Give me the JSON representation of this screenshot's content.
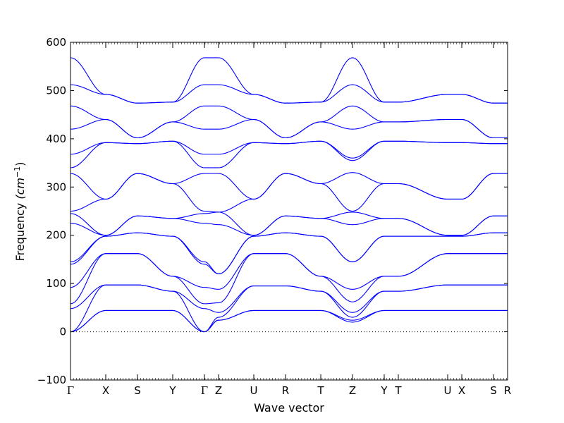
{
  "chart_data": {
    "type": "line",
    "xlabel": "Wave vector",
    "ylabel": "Frequency ",
    "ylabel_unit": "(cm",
    "ylabel_exp": "−1",
    "ylabel_close": ")",
    "ylim": [
      -100,
      600
    ],
    "yticks": [
      "600",
      "500",
      "400",
      "300",
      "200",
      "100",
      "0",
      "−100"
    ],
    "ytick_values": [
      600,
      500,
      400,
      300,
      200,
      100,
      0,
      -100
    ],
    "xlim": [
      0,
      12.4
    ],
    "kpoints": [
      {
        "label": "Γ",
        "x": 0
      },
      {
        "label": "X",
        "x": 1
      },
      {
        "label": "S",
        "x": 1.9
      },
      {
        "label": "Y",
        "x": 2.9
      },
      {
        "label": "Γ",
        "x": 3.8
      },
      {
        "label": "Z",
        "x": 4.2
      },
      {
        "label": "U",
        "x": 5.2
      },
      {
        "label": "R",
        "x": 6.1
      },
      {
        "label": "T",
        "x": 7.1
      },
      {
        "label": "Z",
        "x": 8.0
      },
      {
        "label": "Y",
        "x": 8.9
      },
      {
        "label": "T",
        "x": 9.3
      },
      {
        "label": "U",
        "x": 10.7
      },
      {
        "label": "X",
        "x": 11.1
      },
      {
        "label": "S",
        "x": 12.0
      },
      {
        "label": "R",
        "x": 12.4
      }
    ],
    "zero_line": 0,
    "color": "#0000ff",
    "grid": false,
    "legend": "none",
    "node_values": [
      [
        0,
        44,
        44,
        44,
        0,
        24,
        44,
        44,
        44,
        20,
        44,
        44,
        44,
        44,
        44,
        44
      ],
      [
        0,
        44,
        44,
        44,
        0,
        24,
        44,
        44,
        44,
        24,
        44,
        44,
        44,
        44,
        44,
        44
      ],
      [
        0,
        97,
        97,
        84,
        0,
        30,
        95,
        95,
        84,
        30,
        84,
        84,
        97,
        97,
        97,
        97
      ],
      [
        48,
        97,
        97,
        84,
        48,
        40,
        95,
        95,
        84,
        40,
        84,
        84,
        97,
        97,
        97,
        97
      ],
      [
        58,
        162,
        162,
        115,
        58,
        60,
        162,
        162,
        115,
        62,
        115,
        115,
        162,
        162,
        162,
        162
      ],
      [
        92,
        162,
        162,
        115,
        92,
        88,
        162,
        162,
        115,
        88,
        115,
        115,
        162,
        162,
        162,
        162
      ],
      [
        140,
        198,
        205,
        198,
        140,
        120,
        198,
        205,
        198,
        145,
        198,
        198,
        198,
        198,
        205,
        205
      ],
      [
        145,
        198,
        205,
        198,
        145,
        120,
        198,
        205,
        198,
        145,
        198,
        198,
        198,
        198,
        205,
        205
      ],
      [
        225,
        200,
        240,
        235,
        225,
        222,
        200,
        240,
        235,
        222,
        235,
        235,
        200,
        200,
        240,
        240
      ],
      [
        245,
        200,
        240,
        235,
        245,
        248,
        200,
        240,
        235,
        248,
        235,
        235,
        200,
        200,
        240,
        240
      ],
      [
        250,
        275,
        328,
        307,
        250,
        248,
        275,
        328,
        307,
        250,
        307,
        307,
        275,
        275,
        328,
        328
      ],
      [
        328,
        275,
        328,
        307,
        328,
        328,
        275,
        328,
        307,
        330,
        307,
        307,
        275,
        275,
        328,
        328
      ],
      [
        340,
        392,
        390,
        395,
        340,
        340,
        392,
        390,
        395,
        355,
        395,
        395,
        392,
        392,
        390,
        390
      ],
      [
        368,
        392,
        390,
        395,
        368,
        368,
        392,
        390,
        395,
        360,
        395,
        395,
        392,
        392,
        390,
        390
      ],
      [
        420,
        440,
        402,
        435,
        420,
        420,
        440,
        402,
        435,
        420,
        435,
        435,
        440,
        440,
        402,
        402
      ],
      [
        468,
        440,
        402,
        435,
        468,
        468,
        440,
        402,
        435,
        468,
        435,
        435,
        440,
        440,
        402,
        402
      ],
      [
        512,
        492,
        474,
        476,
        512,
        512,
        492,
        474,
        476,
        512,
        476,
        476,
        492,
        492,
        474,
        474
      ],
      [
        568,
        492,
        474,
        476,
        568,
        568,
        492,
        474,
        476,
        568,
        476,
        476,
        492,
        492,
        474,
        474
      ]
    ]
  }
}
